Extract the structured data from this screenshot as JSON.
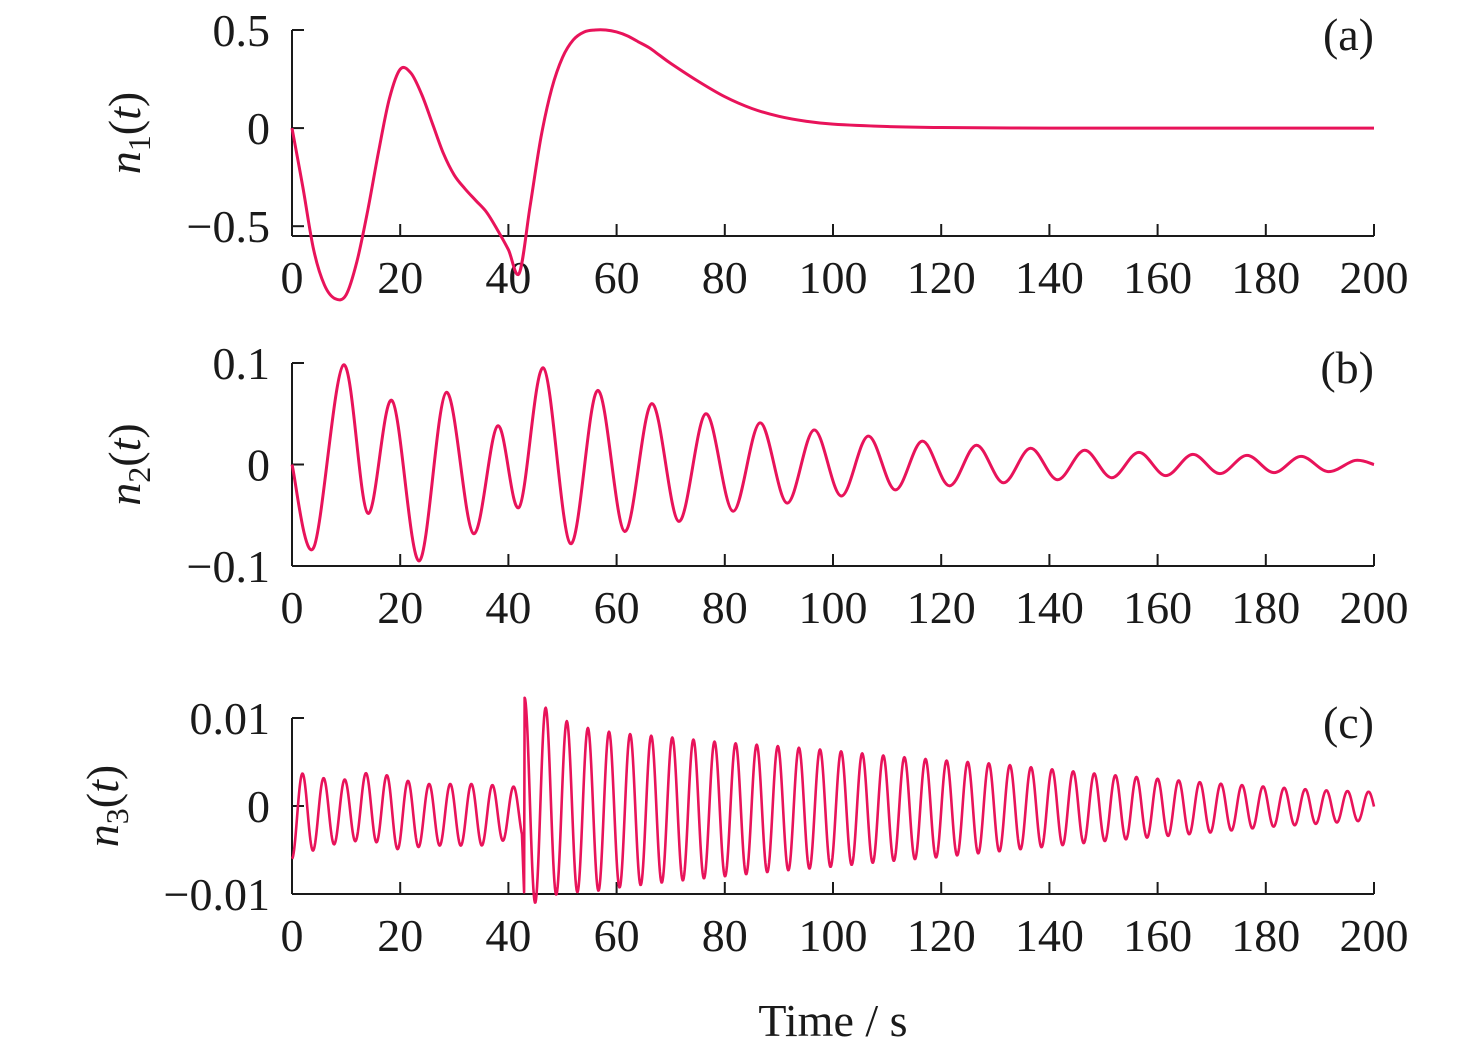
{
  "figure": {
    "xlabel": "Time / s",
    "colors": {
      "series": "#e8135a",
      "axis": "#1a1a1a",
      "text": "#1a1a1a"
    }
  },
  "chart_data": [
    {
      "type": "line",
      "panel_label": "(a)",
      "ylabel": "n1(t)",
      "xlim": [
        0,
        200
      ],
      "ylim": [
        -0.55,
        0.5
      ],
      "xticks": [
        0,
        20,
        40,
        60,
        80,
        100,
        120,
        140,
        160,
        180,
        200
      ],
      "yticks": [
        0.5,
        0,
        -0.5
      ],
      "ytick_labels": [
        "0.5",
        "0",
        "−0.5"
      ],
      "grid": false,
      "series": [
        {
          "x": [
            0,
            2,
            4,
            6,
            8,
            10,
            12,
            14,
            16,
            18,
            20,
            22,
            24,
            26,
            28,
            30,
            32,
            34,
            36,
            38,
            40,
            42,
            44,
            46,
            48,
            50,
            52,
            54,
            56,
            58,
            60,
            62,
            64,
            66,
            68,
            70,
            75,
            80,
            85,
            90,
            95,
            100,
            110,
            120,
            140,
            160,
            180,
            200
          ],
          "y": [
            0,
            -0.3,
            -0.62,
            -0.8,
            -0.87,
            -0.85,
            -0.68,
            -0.42,
            -0.12,
            0.15,
            0.3,
            0.28,
            0.17,
            0.02,
            -0.13,
            -0.24,
            -0.31,
            -0.37,
            -0.43,
            -0.52,
            -0.62,
            -0.74,
            -0.4,
            -0.05,
            0.2,
            0.36,
            0.45,
            0.49,
            0.5,
            0.5,
            0.49,
            0.47,
            0.44,
            0.41,
            0.37,
            0.33,
            0.24,
            0.16,
            0.1,
            0.06,
            0.035,
            0.02,
            0.008,
            0.003,
            0.0,
            0.0,
            0.0,
            0.0
          ]
        }
      ]
    },
    {
      "type": "line",
      "panel_label": "(b)",
      "ylabel": "n2(t)",
      "xlim": [
        0,
        200
      ],
      "ylim": [
        -0.1,
        0.1
      ],
      "xticks": [
        0,
        20,
        40,
        60,
        80,
        100,
        120,
        140,
        160,
        180,
        200
      ],
      "yticks": [
        0.1,
        0,
        -0.1
      ],
      "ytick_labels": [
        "0.1",
        "0",
        "−0.1"
      ],
      "grid": false,
      "series": [
        {
          "x": [
            0,
            4,
            9.5,
            14,
            18.5,
            23.5,
            28.5,
            33.5,
            38,
            42,
            46.5,
            51.5,
            56.5,
            61.5,
            66.5,
            71.5,
            76.5,
            81.5,
            86.5,
            91.5,
            96.5,
            101.5,
            106.5,
            111.5,
            116.5,
            121.5,
            126.5,
            131.5,
            136.5,
            141.5,
            146.5,
            151.5,
            156.5,
            161.5,
            166.5,
            171.5,
            176.5,
            181.5,
            186.5,
            191.5,
            196.5,
            200
          ],
          "y": [
            0,
            -0.082,
            0.098,
            -0.048,
            0.063,
            -0.095,
            0.071,
            -0.068,
            0.038,
            -0.042,
            0.095,
            -0.078,
            0.073,
            -0.066,
            0.06,
            -0.056,
            0.05,
            -0.046,
            0.041,
            -0.038,
            0.034,
            -0.031,
            0.028,
            -0.025,
            0.023,
            -0.021,
            0.019,
            -0.018,
            0.016,
            -0.015,
            0.014,
            -0.013,
            0.012,
            -0.011,
            0.01,
            -0.009,
            0.009,
            -0.008,
            0.008,
            -0.007,
            0.004,
            0
          ]
        }
      ]
    },
    {
      "type": "line",
      "panel_label": "(c)",
      "ylabel": "n3(t)",
      "xlim": [
        0,
        200
      ],
      "ylim": [
        -0.01,
        0.01
      ],
      "xticks": [
        0,
        20,
        40,
        60,
        80,
        100,
        120,
        140,
        160,
        180,
        200
      ],
      "yticks": [
        0.01,
        0,
        -0.01
      ],
      "ytick_labels": [
        "0.01",
        "0",
        "−0.01"
      ],
      "grid": false,
      "oscillation_period": 3.9,
      "series": [
        {
          "x": [
            0,
            5,
            10,
            15,
            20,
            25,
            30,
            35,
            40,
            42.5,
            43,
            45,
            50,
            55,
            60,
            70,
            80,
            90,
            100,
            110,
            120,
            130,
            140,
            150,
            160,
            170,
            180,
            190,
            200
          ],
          "amplitude": [
            0.005,
            0.004,
            0.0035,
            0.004,
            0.004,
            0.0035,
            0.0035,
            0.0035,
            0.003,
            0.003,
            0.0118,
            0.0115,
            0.0098,
            0.0093,
            0.0088,
            0.0082,
            0.0076,
            0.0071,
            0.0066,
            0.006,
            0.0055,
            0.005,
            0.0044,
            0.0038,
            0.0033,
            0.0028,
            0.0023,
            0.0019,
            0.0016
          ],
          "center": [
            -0.001,
            -0.0008,
            -0.0005,
            0,
            -0.001,
            -0.001,
            -0.001,
            -0.001,
            -0.0008,
            -0.0008,
            0.0005,
            0.0005,
            0,
            -0.0005,
            -0.0005,
            -0.0004,
            -0.0004,
            -0.0003,
            -0.0003,
            -0.0003,
            -0.0003,
            -0.0002,
            -0.0002,
            -0.0002,
            -0.0002,
            -0.0002,
            -0.0001,
            -0.0001,
            0
          ]
        }
      ]
    }
  ]
}
